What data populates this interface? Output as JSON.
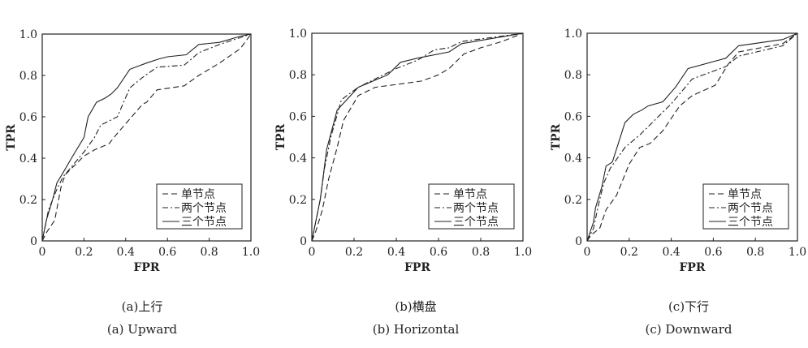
{
  "chart_data": [
    {
      "type": "line",
      "caption_cn": "(a)上行",
      "caption_en": "(a) Upward",
      "xlabel": "FPR",
      "ylabel": "TPR",
      "xlim": [
        0,
        1
      ],
      "ylim": [
        0,
        1
      ],
      "xticks": [
        "0",
        "0.2",
        "0.4",
        "0.6",
        "0.8",
        "1.0"
      ],
      "yticks": [
        "0",
        "0.2",
        "0.4",
        "0.6",
        "0.8",
        "1.0"
      ],
      "legend_position": "lower-right",
      "series": [
        {
          "name": "单节点",
          "style": "dashed",
          "x": [
            0,
            0.02,
            0.06,
            0.09,
            0.11,
            0.15,
            0.2,
            0.25,
            0.32,
            0.36,
            0.42,
            0.48,
            0.5,
            0.55,
            0.68,
            0.75,
            0.85,
            0.95,
            1
          ],
          "y": [
            0,
            0.04,
            0.1,
            0.26,
            0.32,
            0.36,
            0.41,
            0.44,
            0.47,
            0.52,
            0.59,
            0.66,
            0.67,
            0.73,
            0.75,
            0.8,
            0.86,
            0.93,
            1
          ]
        },
        {
          "name": "两个节点",
          "style": "dashdot",
          "x": [
            0,
            0.03,
            0.07,
            0.1,
            0.15,
            0.2,
            0.25,
            0.28,
            0.36,
            0.42,
            0.48,
            0.55,
            0.68,
            0.75,
            0.85,
            1
          ],
          "y": [
            0,
            0.15,
            0.25,
            0.31,
            0.37,
            0.43,
            0.5,
            0.56,
            0.6,
            0.74,
            0.79,
            0.84,
            0.85,
            0.91,
            0.95,
            1
          ]
        },
        {
          "name": "三个节点",
          "style": "solid",
          "x": [
            0,
            0.02,
            0.05,
            0.07,
            0.1,
            0.14,
            0.2,
            0.22,
            0.26,
            0.3,
            0.33,
            0.36,
            0.42,
            0.5,
            0.56,
            0.6,
            0.69,
            0.75,
            0.85,
            0.95,
            1
          ],
          "y": [
            0,
            0.1,
            0.2,
            0.28,
            0.33,
            0.4,
            0.5,
            0.6,
            0.67,
            0.69,
            0.71,
            0.74,
            0.83,
            0.86,
            0.88,
            0.89,
            0.9,
            0.95,
            0.96,
            0.99,
            1
          ]
        }
      ]
    },
    {
      "type": "line",
      "caption_cn": "(b)横盘",
      "caption_en": "(b) Horizontal",
      "xlabel": "FPR",
      "ylabel": "TPR",
      "xlim": [
        0,
        1
      ],
      "ylim": [
        0,
        1
      ],
      "xticks": [
        "0",
        "0.2",
        "0.4",
        "0.6",
        "0.8",
        "1.0"
      ],
      "yticks": [
        "0",
        "0.2",
        "0.4",
        "0.6",
        "0.8",
        "1.0"
      ],
      "legend_position": "lower-right",
      "series": [
        {
          "name": "单节点",
          "style": "dashed",
          "x": [
            0,
            0.02,
            0.05,
            0.08,
            0.12,
            0.15,
            0.22,
            0.3,
            0.45,
            0.52,
            0.6,
            0.65,
            0.72,
            0.8,
            0.9,
            1
          ],
          "y": [
            0,
            0.05,
            0.15,
            0.3,
            0.45,
            0.58,
            0.7,
            0.74,
            0.76,
            0.77,
            0.8,
            0.83,
            0.9,
            0.93,
            0.96,
            1
          ]
        },
        {
          "name": "两个节点",
          "style": "dashdot",
          "x": [
            0,
            0.04,
            0.06,
            0.09,
            0.14,
            0.22,
            0.4,
            0.5,
            0.58,
            0.65,
            0.71,
            1
          ],
          "y": [
            0,
            0.2,
            0.35,
            0.5,
            0.68,
            0.74,
            0.83,
            0.87,
            0.92,
            0.93,
            0.96,
            1
          ]
        },
        {
          "name": "三个节点",
          "style": "solid",
          "x": [
            0,
            0.04,
            0.07,
            0.12,
            0.22,
            0.36,
            0.42,
            0.5,
            0.65,
            0.71,
            1
          ],
          "y": [
            0,
            0.2,
            0.44,
            0.63,
            0.74,
            0.8,
            0.86,
            0.88,
            0.91,
            0.95,
            1
          ]
        }
      ]
    },
    {
      "type": "line",
      "caption_cn": "(c)下行",
      "caption_en": "(c) Downward",
      "xlabel": "FPR",
      "ylabel": "TPR",
      "xlim": [
        0,
        1
      ],
      "ylim": [
        0,
        1
      ],
      "xticks": [
        "0",
        "0.2",
        "0.4",
        "0.6",
        "0.8",
        "1.0"
      ],
      "yticks": [
        "0",
        "0.2",
        "0.4",
        "0.6",
        "0.8",
        "1.0"
      ],
      "legend_position": "lower-right",
      "series": [
        {
          "name": "单节点",
          "style": "dashed",
          "x": [
            0,
            0.02,
            0.06,
            0.09,
            0.14,
            0.2,
            0.25,
            0.3,
            0.36,
            0.44,
            0.5,
            0.61,
            0.67,
            0.72,
            0.93,
            1
          ],
          "y": [
            0,
            0.03,
            0.06,
            0.15,
            0.22,
            0.37,
            0.45,
            0.47,
            0.53,
            0.65,
            0.7,
            0.75,
            0.85,
            0.91,
            0.95,
            1
          ]
        },
        {
          "name": "两个节点",
          "style": "dashdot",
          "x": [
            0,
            0.03,
            0.06,
            0.08,
            0.11,
            0.18,
            0.25,
            0.3,
            0.4,
            0.5,
            0.66,
            0.72,
            0.93,
            1
          ],
          "y": [
            0,
            0.06,
            0.2,
            0.28,
            0.35,
            0.45,
            0.51,
            0.56,
            0.66,
            0.78,
            0.84,
            0.89,
            0.94,
            1
          ]
        },
        {
          "name": "三个节点",
          "style": "solid",
          "x": [
            0,
            0.03,
            0.04,
            0.07,
            0.09,
            0.12,
            0.18,
            0.22,
            0.26,
            0.29,
            0.36,
            0.42,
            0.48,
            0.66,
            0.72,
            0.93,
            1
          ],
          "y": [
            0,
            0.09,
            0.16,
            0.26,
            0.36,
            0.38,
            0.57,
            0.61,
            0.63,
            0.65,
            0.67,
            0.74,
            0.83,
            0.88,
            0.94,
            0.97,
            1
          ]
        }
      ]
    }
  ]
}
